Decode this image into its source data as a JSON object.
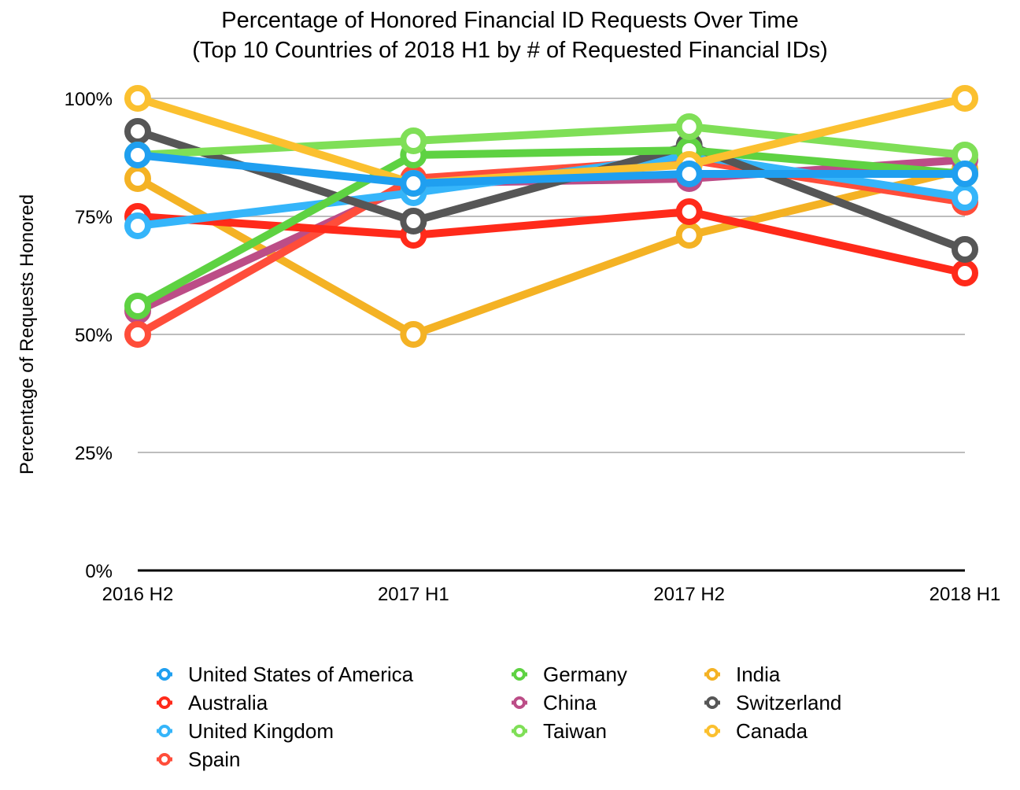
{
  "chart_data": {
    "type": "line",
    "title": "Percentage of Honored Financial ID Requests Over Time",
    "subtitle": "(Top 10 Countries of 2018 H1 by # of Requested Financial IDs)",
    "xlabel": "",
    "ylabel": "Percentage of Requests Honored",
    "categories": [
      "2016 H2",
      "2017 H1",
      "2017 H2",
      "2018 H1"
    ],
    "ylim": [
      0,
      100
    ],
    "yticks": [
      0,
      25,
      50,
      75,
      100
    ],
    "ytick_labels": [
      "0%",
      "25%",
      "50%",
      "75%",
      "100%"
    ],
    "grid": true,
    "legend_position": "bottom",
    "series": [
      {
        "name": "United States of America",
        "color": "#1f9ff0",
        "values": [
          88,
          82,
          84,
          84
        ]
      },
      {
        "name": "Australia",
        "color": "#ff2a1a",
        "values": [
          75,
          71,
          76,
          63
        ]
      },
      {
        "name": "United Kingdom",
        "color": "#35b5fa",
        "values": [
          73,
          80,
          88,
          79
        ]
      },
      {
        "name": "Spain",
        "color": "#ff4d3a",
        "values": [
          50,
          83,
          87,
          78
        ]
      },
      {
        "name": "Germany",
        "color": "#5ed242",
        "values": [
          56,
          88,
          89,
          84
        ]
      },
      {
        "name": "China",
        "color": "#bc4d87",
        "values": [
          55,
          82,
          83,
          87
        ]
      },
      {
        "name": "Taiwan",
        "color": "#7fdf57",
        "values": [
          88,
          91,
          94,
          88
        ]
      },
      {
        "name": "India",
        "color": "#f4b224",
        "values": [
          83,
          50,
          71,
          85
        ]
      },
      {
        "name": "Switzerland",
        "color": "#565656",
        "values": [
          93,
          74,
          90,
          68
        ]
      },
      {
        "name": "Canada",
        "color": "#fbc02f",
        "values": [
          100,
          82,
          86,
          100
        ]
      }
    ],
    "draw_order": [
      "India",
      "China",
      "Spain",
      "Australia",
      "United Kingdom",
      "Switzerland",
      "Germany",
      "Taiwan",
      "Canada",
      "United States of America"
    ]
  }
}
